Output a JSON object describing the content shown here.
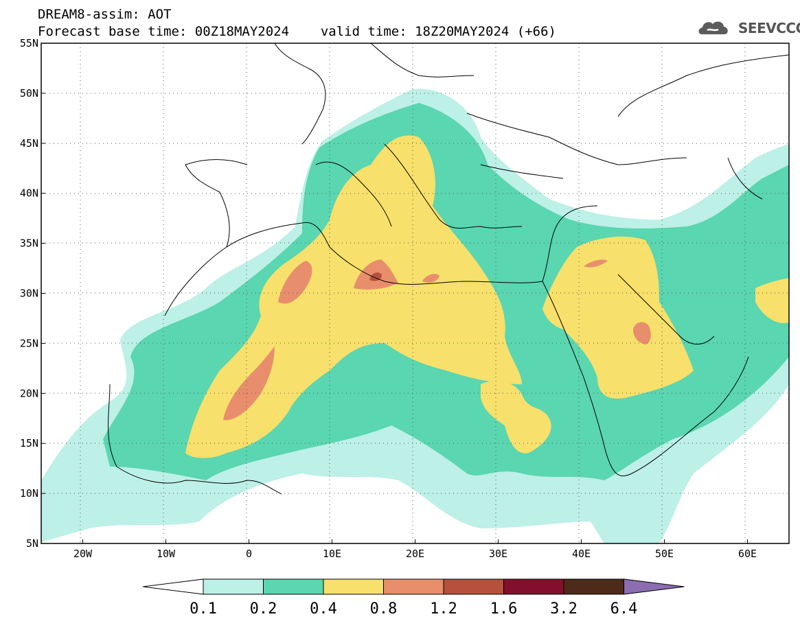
{
  "header": {
    "title_line1": "DREAM8-assim: AOT",
    "base_time_text": "Forecast base time: 00Z18MAY2024",
    "valid_time_text": "valid time: 18Z20MAY2024 (+66)",
    "logo_text": "SEEVCCC",
    "logo_icon": "cloud-icon"
  },
  "map": {
    "lon_range": [
      -25,
      65
    ],
    "lat_range": [
      5,
      55
    ],
    "lat_labels": [
      "55N",
      "50N",
      "45N",
      "40N",
      "35N",
      "30N",
      "25N",
      "20N",
      "15N",
      "10N",
      "5N"
    ],
    "lat_values": [
      55,
      50,
      45,
      40,
      35,
      30,
      25,
      20,
      15,
      10,
      5
    ],
    "lon_labels": [
      "20W",
      "10W",
      "0",
      "10E",
      "20E",
      "30E",
      "40E",
      "50E",
      "60E"
    ],
    "lon_values": [
      -20,
      -10,
      0,
      10,
      20,
      30,
      40,
      50,
      60
    ],
    "colors": {
      "land_bg": "#ffffff",
      "aot_0_1": "#bdf0e6",
      "aot_0_2": "#5ad6b0",
      "aot_0_4": "#f7e06b",
      "aot_0_8": "#e88e6c",
      "aot_1_2": "#b5513c",
      "aot_1_6": "#82102c",
      "aot_3_2": "#4d2a19",
      "aot_6_4": "#8b6db0"
    }
  },
  "colorbar": {
    "labels": [
      "0.1",
      "0.2",
      "0.4",
      "0.8",
      "1.2",
      "1.6",
      "3.2",
      "6.4"
    ],
    "colors": [
      "#ffffff",
      "#bdf0e6",
      "#5ad6b0",
      "#f7e06b",
      "#e88e6c",
      "#b5513c",
      "#82102c",
      "#4d2a19",
      "#8b6db0"
    ]
  }
}
